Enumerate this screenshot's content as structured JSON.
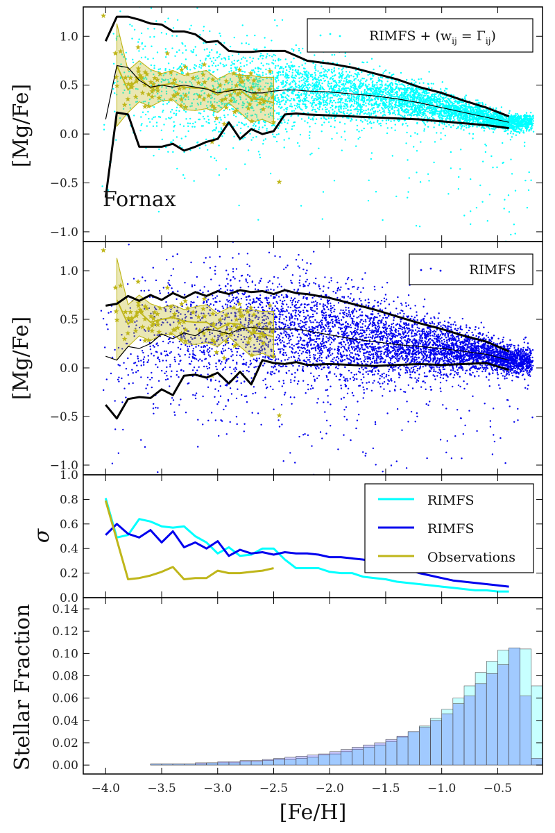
{
  "chart_data": [
    {
      "panel": "mg-fe-rimfs-wij",
      "type": "scatter",
      "ylabel": "[Mg/Fe]",
      "xlim": [
        -4.2,
        -0.1
      ],
      "ylim": [
        -1.1,
        1.3
      ],
      "yticks": [
        -1.0,
        -0.5,
        0.0,
        0.5,
        1.0
      ],
      "ytick_labels": [
        "−1.0",
        "−0.5",
        "0.0",
        "0.5",
        "1.0"
      ],
      "annotation": "Fornax",
      "legend": [
        {
          "label": "RIMFS + (w_ij = Γ_ij)",
          "marker": "dot",
          "color": "#00ffff"
        }
      ],
      "legend_position": "top-right",
      "scatter_color": "#00ffff",
      "observations_color": "#bfb61a",
      "median_line": {
        "x": [
          -4.0,
          -3.9,
          -3.8,
          -3.7,
          -3.6,
          -3.5,
          -3.4,
          -3.3,
          -3.2,
          -3.1,
          -3.0,
          -2.9,
          -2.8,
          -2.7,
          -2.6,
          -2.5,
          -2.4,
          -2.3,
          -2.2,
          -2.0,
          -1.8,
          -1.6,
          -1.4,
          -1.2,
          -1.0,
          -0.8,
          -0.6,
          -0.4
        ],
        "y": [
          0.15,
          0.7,
          0.68,
          0.55,
          0.48,
          0.5,
          0.48,
          0.5,
          0.48,
          0.46,
          0.42,
          0.44,
          0.46,
          0.42,
          0.42,
          0.44,
          0.45,
          0.45,
          0.44,
          0.43,
          0.41,
          0.39,
          0.36,
          0.32,
          0.27,
          0.22,
          0.17,
          0.12
        ]
      },
      "upper_line": {
        "x": [
          -4.0,
          -3.9,
          -3.8,
          -3.7,
          -3.6,
          -3.5,
          -3.4,
          -3.3,
          -3.2,
          -3.1,
          -3.0,
          -2.9,
          -2.8,
          -2.7,
          -2.6,
          -2.5,
          -2.4,
          -2.3,
          -2.2,
          -2.0,
          -1.8,
          -1.6,
          -1.4,
          -1.2,
          -1.0,
          -0.8,
          -0.6,
          -0.4
        ],
        "y": [
          0.95,
          1.2,
          1.2,
          1.17,
          1.13,
          1.12,
          1.05,
          1.05,
          1.02,
          0.94,
          0.95,
          0.85,
          0.84,
          0.84,
          0.85,
          0.85,
          0.85,
          0.8,
          0.75,
          0.72,
          0.68,
          0.62,
          0.56,
          0.48,
          0.42,
          0.34,
          0.27,
          0.18
        ]
      },
      "lower_line": {
        "x": [
          -4.0,
          -3.9,
          -3.8,
          -3.7,
          -3.6,
          -3.5,
          -3.4,
          -3.3,
          -3.2,
          -3.1,
          -3.0,
          -2.9,
          -2.8,
          -2.7,
          -2.6,
          -2.5,
          -2.4,
          -2.3,
          -2.2,
          -2.0,
          -1.8,
          -1.6,
          -1.4,
          -1.2,
          -1.0,
          -0.8,
          -0.6,
          -0.4
        ],
        "y": [
          -0.65,
          0.22,
          0.2,
          -0.13,
          -0.13,
          -0.13,
          -0.1,
          -0.17,
          -0.13,
          -0.08,
          -0.05,
          0.12,
          -0.05,
          0.05,
          0.0,
          0.03,
          0.2,
          0.21,
          0.2,
          0.19,
          0.18,
          0.17,
          0.16,
          0.15,
          0.13,
          0.11,
          0.09,
          0.06
        ]
      },
      "observations_median": {
        "x": [
          -3.9,
          -3.8,
          -3.7,
          -3.6,
          -3.5,
          -3.4,
          -3.3,
          -3.2,
          -3.1,
          -3.0,
          -2.9,
          -2.8,
          -2.7,
          -2.6,
          -2.5
        ],
        "y": [
          0.7,
          0.45,
          0.58,
          0.47,
          0.5,
          0.52,
          0.48,
          0.47,
          0.47,
          0.4,
          0.46,
          0.45,
          0.36,
          0.35,
          0.32
        ]
      },
      "observations_band_upper": [
        1.13,
        0.65,
        0.75,
        0.66,
        0.62,
        0.65,
        0.6,
        0.63,
        0.65,
        0.56,
        0.62,
        0.6,
        0.6,
        0.58,
        0.58
      ],
      "observations_band_lower": [
        0.08,
        0.22,
        0.33,
        0.28,
        0.34,
        0.35,
        0.25,
        0.24,
        0.26,
        0.22,
        0.32,
        0.22,
        0.12,
        0.15,
        0.1
      ]
    },
    {
      "panel": "mg-fe-rimfs",
      "type": "scatter",
      "ylabel": "[Mg/Fe]",
      "xlim": [
        -4.2,
        -0.1
      ],
      "ylim": [
        -1.1,
        1.3
      ],
      "yticks": [
        -1.0,
        -0.5,
        0.0,
        0.5,
        1.0
      ],
      "ytick_labels": [
        "−1.0",
        "−0.5",
        "0.0",
        "0.5",
        "1.0"
      ],
      "legend": [
        {
          "label": "RIMFS",
          "marker": "dot",
          "color": "#0000ee"
        }
      ],
      "legend_position": "top-right",
      "scatter_color": "#0000ee",
      "observations_color": "#bfb61a",
      "median_line": {
        "x": [
          -4.0,
          -3.9,
          -3.8,
          -3.7,
          -3.6,
          -3.5,
          -3.4,
          -3.3,
          -3.2,
          -3.1,
          -3.0,
          -2.9,
          -2.8,
          -2.7,
          -2.6,
          -2.5,
          -2.4,
          -2.3,
          -2.2,
          -2.0,
          -1.8,
          -1.6,
          -1.4,
          -1.2,
          -1.0,
          -0.8,
          -0.6,
          -0.4
        ],
        "y": [
          0.12,
          0.08,
          0.22,
          0.2,
          0.25,
          0.35,
          0.3,
          0.36,
          0.33,
          0.4,
          0.38,
          0.35,
          0.4,
          0.42,
          0.4,
          0.4,
          0.4,
          0.4,
          0.38,
          0.34,
          0.3,
          0.27,
          0.24,
          0.22,
          0.2,
          0.17,
          0.14,
          0.08
        ]
      },
      "upper_line": {
        "x": [
          -4.0,
          -3.9,
          -3.8,
          -3.7,
          -3.6,
          -3.5,
          -3.4,
          -3.3,
          -3.2,
          -3.1,
          -3.0,
          -2.9,
          -2.8,
          -2.7,
          -2.6,
          -2.5,
          -2.4,
          -2.3,
          -2.2,
          -2.0,
          -1.8,
          -1.6,
          -1.4,
          -1.2,
          -1.0,
          -0.8,
          -0.6,
          -0.4
        ],
        "y": [
          0.64,
          0.66,
          0.74,
          0.69,
          0.75,
          0.7,
          0.77,
          0.72,
          0.78,
          0.74,
          0.79,
          0.76,
          0.8,
          0.78,
          0.79,
          0.76,
          0.8,
          0.77,
          0.76,
          0.72,
          0.66,
          0.6,
          0.53,
          0.46,
          0.4,
          0.33,
          0.27,
          0.17
        ]
      },
      "lower_line": {
        "x": [
          -4.0,
          -3.9,
          -3.8,
          -3.7,
          -3.6,
          -3.5,
          -3.4,
          -3.3,
          -3.2,
          -3.1,
          -3.0,
          -2.9,
          -2.8,
          -2.7,
          -2.6,
          -2.5,
          -2.4,
          -2.3,
          -2.2,
          -2.0,
          -1.8,
          -1.6,
          -1.4,
          -1.2,
          -1.0,
          -0.8,
          -0.6,
          -0.4
        ],
        "y": [
          -0.38,
          -0.52,
          -0.32,
          -0.3,
          -0.31,
          -0.22,
          -0.28,
          -0.08,
          -0.07,
          -0.1,
          -0.05,
          -0.16,
          -0.04,
          -0.17,
          0.08,
          0.05,
          0.04,
          0.06,
          0.03,
          0.04,
          0.03,
          0.02,
          0.03,
          0.04,
          0.03,
          0.04,
          0.05,
          -0.02
        ]
      },
      "observations_median": {
        "x": [
          -3.9,
          -3.8,
          -3.7,
          -3.6,
          -3.5,
          -3.4,
          -3.3,
          -3.2,
          -3.1,
          -3.0,
          -2.9,
          -2.8,
          -2.7,
          -2.6,
          -2.5
        ],
        "y": [
          0.7,
          0.45,
          0.58,
          0.47,
          0.5,
          0.52,
          0.48,
          0.47,
          0.47,
          0.4,
          0.46,
          0.45,
          0.36,
          0.35,
          0.32
        ]
      },
      "observations_band_upper": [
        1.13,
        0.65,
        0.75,
        0.66,
        0.62,
        0.65,
        0.6,
        0.63,
        0.65,
        0.56,
        0.62,
        0.6,
        0.6,
        0.58,
        0.58
      ],
      "observations_band_lower": [
        0.08,
        0.22,
        0.33,
        0.28,
        0.34,
        0.35,
        0.25,
        0.24,
        0.26,
        0.22,
        0.32,
        0.22,
        0.12,
        0.15,
        0.1
      ]
    },
    {
      "panel": "sigma",
      "type": "line",
      "ylabel": "σ",
      "xlim": [
        -4.2,
        -0.1
      ],
      "ylim": [
        0.0,
        1.0
      ],
      "yticks": [
        0.0,
        0.2,
        0.4,
        0.6,
        0.8,
        1.0
      ],
      "ytick_labels": [
        "0.0",
        "0.2",
        "0.4",
        "0.6",
        "0.8",
        "1.0"
      ],
      "legend_position": "top-right",
      "series": [
        {
          "name": "RIMFS",
          "color": "#00ffff",
          "x": [
            -4.0,
            -3.9,
            -3.8,
            -3.7,
            -3.6,
            -3.5,
            -3.4,
            -3.3,
            -3.2,
            -3.1,
            -3.0,
            -2.9,
            -2.8,
            -2.7,
            -2.6,
            -2.5,
            -2.4,
            -2.3,
            -2.2,
            -2.1,
            -2.0,
            -1.9,
            -1.8,
            -1.7,
            -1.6,
            -1.5,
            -1.4,
            -1.3,
            -1.2,
            -1.1,
            -1.0,
            -0.9,
            -0.8,
            -0.7,
            -0.6,
            -0.5,
            -0.4
          ],
          "y": [
            0.81,
            0.49,
            0.51,
            0.64,
            0.62,
            0.58,
            0.57,
            0.58,
            0.5,
            0.45,
            0.36,
            0.41,
            0.34,
            0.35,
            0.4,
            0.4,
            0.31,
            0.24,
            0.24,
            0.24,
            0.21,
            0.2,
            0.2,
            0.17,
            0.16,
            0.15,
            0.13,
            0.12,
            0.11,
            0.1,
            0.09,
            0.08,
            0.07,
            0.06,
            0.06,
            0.05,
            0.05
          ]
        },
        {
          "name": "RIMFS",
          "color": "#0000ee",
          "x": [
            -4.0,
            -3.9,
            -3.8,
            -3.7,
            -3.6,
            -3.5,
            -3.4,
            -3.3,
            -3.2,
            -3.1,
            -3.0,
            -2.9,
            -2.8,
            -2.7,
            -2.6,
            -2.5,
            -2.4,
            -2.3,
            -2.2,
            -2.1,
            -2.0,
            -1.9,
            -1.8,
            -1.7,
            -1.6,
            -1.5,
            -1.4,
            -1.3,
            -1.2,
            -1.1,
            -1.0,
            -0.9,
            -0.8,
            -0.7,
            -0.6,
            -0.5,
            -0.4
          ],
          "y": [
            0.51,
            0.6,
            0.52,
            0.49,
            0.55,
            0.45,
            0.54,
            0.41,
            0.45,
            0.4,
            0.46,
            0.34,
            0.39,
            0.36,
            0.37,
            0.35,
            0.37,
            0.36,
            0.36,
            0.35,
            0.33,
            0.33,
            0.32,
            0.31,
            0.29,
            0.27,
            0.25,
            0.23,
            0.2,
            0.18,
            0.16,
            0.14,
            0.13,
            0.12,
            0.11,
            0.1,
            0.09
          ]
        },
        {
          "name": "Observations",
          "color": "#bfb61a",
          "x": [
            -4.0,
            -3.9,
            -3.8,
            -3.7,
            -3.6,
            -3.5,
            -3.4,
            -3.3,
            -3.2,
            -3.1,
            -3.0,
            -2.9,
            -2.8,
            -2.7,
            -2.6,
            -2.5
          ],
          "y": [
            0.79,
            0.47,
            0.15,
            0.16,
            0.18,
            0.21,
            0.25,
            0.15,
            0.16,
            0.16,
            0.22,
            0.2,
            0.2,
            0.21,
            0.22,
            0.24
          ]
        }
      ]
    },
    {
      "panel": "stellar-fraction",
      "type": "bar",
      "ylabel": "Stellar Fraction",
      "xlabel": "[Fe/H]",
      "xlim": [
        -4.2,
        -0.1
      ],
      "ylim": [
        -0.008,
        0.15
      ],
      "yticks": [
        0.0,
        0.02,
        0.04,
        0.06,
        0.08,
        0.1,
        0.12,
        0.14
      ],
      "ytick_labels": [
        "0.00",
        "0.02",
        "0.04",
        "0.06",
        "0.08",
        "0.10",
        "0.12",
        "0.14"
      ],
      "xticks": [
        -4.0,
        -3.5,
        -3.0,
        -2.5,
        -2.0,
        -1.5,
        -1.0,
        -0.5
      ],
      "xtick_labels": [
        "−4.0",
        "−3.5",
        "−3.0",
        "−2.5",
        "−2.0",
        "−1.5",
        "−1.0",
        "−0.5"
      ],
      "bin_edges_start": -4.0,
      "bin_width": 0.1,
      "series": [
        {
          "name": "RIMFS + (w_ij = Γ_ij)",
          "color": "#00ffff",
          "values": [
            0.0,
            0.0,
            0.0,
            0.0,
            0.001,
            0.001,
            0.001,
            0.001,
            0.001,
            0.002,
            0.002,
            0.002,
            0.003,
            0.003,
            0.004,
            0.005,
            0.005,
            0.006,
            0.007,
            0.009,
            0.01,
            0.012,
            0.014,
            0.016,
            0.018,
            0.021,
            0.025,
            0.03,
            0.035,
            0.042,
            0.05,
            0.06,
            0.071,
            0.083,
            0.093,
            0.103,
            0.105,
            0.104,
            0.071,
            0.021
          ]
        },
        {
          "name": "RIMFS",
          "color": "#4040ff",
          "values": [
            0.0,
            0.0,
            0.0,
            0.0,
            0.001,
            0.001,
            0.001,
            0.001,
            0.002,
            0.002,
            0.003,
            0.003,
            0.004,
            0.004,
            0.005,
            0.006,
            0.007,
            0.008,
            0.009,
            0.01,
            0.012,
            0.014,
            0.016,
            0.018,
            0.02,
            0.023,
            0.026,
            0.03,
            0.034,
            0.04,
            0.046,
            0.055,
            0.062,
            0.073,
            0.082,
            0.09,
            0.105,
            0.062,
            0.006,
            0.0
          ]
        }
      ]
    }
  ],
  "legend": {
    "panel1_label": "RIMFS + (w",
    "panel1_sub1": "ij",
    "panel1_eq": " = Γ",
    "panel1_sub2": "ij",
    "panel1_close": ")",
    "panel2_label": "RIMFS",
    "panel3_items": [
      "RIMFS",
      "RIMFS",
      "Observations"
    ]
  }
}
